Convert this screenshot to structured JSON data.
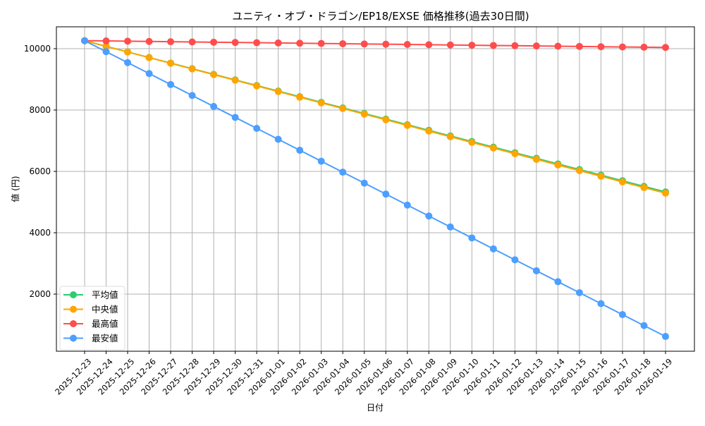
{
  "chart_data": {
    "type": "line",
    "title": "ユニティ・オブ・ドラゴン/EP18/EXSE 価格推移(過去30日間)",
    "xlabel": "日付",
    "ylabel": "値 (円)",
    "ylim": [
      138,
      10713
    ],
    "yticks": [
      2000,
      4000,
      6000,
      8000,
      10000
    ],
    "grid": true,
    "legend_position": "lower-left",
    "x": [
      "2025-12-23",
      "2025-12-24",
      "2025-12-25",
      "2025-12-26",
      "2025-12-27",
      "2025-12-28",
      "2025-12-29",
      "2025-12-30",
      "2025-12-31",
      "2026-01-01",
      "2026-01-02",
      "2026-01-03",
      "2026-01-04",
      "2026-01-05",
      "2026-01-06",
      "2026-01-07",
      "2026-01-08",
      "2026-01-09",
      "2026-01-10",
      "2026-01-11",
      "2026-01-12",
      "2026-01-13",
      "2026-01-14",
      "2026-01-15",
      "2026-01-16",
      "2026-01-17",
      "2026-01-18",
      "2026-01-19"
    ],
    "series": [
      {
        "name": "平均値",
        "color": "#2ecc71",
        "values": [
          10260,
          10077,
          9895,
          9712,
          9530,
          9347,
          9164,
          8982,
          8799,
          8617,
          8434,
          8251,
          8069,
          7886,
          7704,
          7521,
          7338,
          7156,
          6973,
          6791,
          6608,
          6425,
          6243,
          6060,
          5878,
          5695,
          5512,
          5330
        ]
      },
      {
        "name": "中央値",
        "color": "#ffa500",
        "values": [
          10260,
          10076,
          9892,
          9708,
          9524,
          9340,
          9155,
          8971,
          8787,
          8603,
          8419,
          8235,
          8051,
          7867,
          7683,
          7499,
          7314,
          7130,
          6946,
          6762,
          6578,
          6394,
          6210,
          6026,
          5842,
          5658,
          5473,
          5290
        ]
      },
      {
        "name": "最高値",
        "color": "#ff4d4d",
        "values": [
          10260,
          10252,
          10244,
          10236,
          10227,
          10219,
          10211,
          10203,
          10195,
          10187,
          10178,
          10170,
          10162,
          10154,
          10146,
          10138,
          10130,
          10121,
          10113,
          10105,
          10097,
          10089,
          10081,
          10073,
          10064,
          10056,
          10048,
          10040
        ]
      },
      {
        "name": "最安値",
        "color": "#4d9fff",
        "values": [
          10260,
          9903,
          9546,
          9189,
          8832,
          8475,
          8117,
          7760,
          7403,
          7046,
          6689,
          6332,
          5975,
          5618,
          5261,
          4903,
          4546,
          4189,
          3832,
          3475,
          3118,
          2761,
          2404,
          2047,
          1690,
          1332,
          975,
          620
        ]
      }
    ]
  }
}
